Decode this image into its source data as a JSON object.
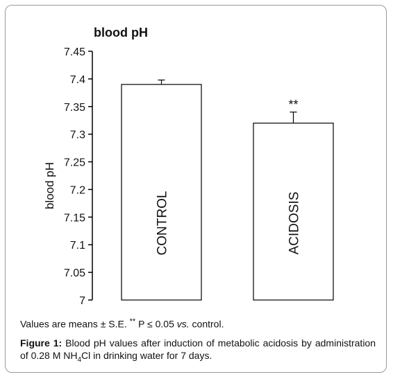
{
  "chart_data": {
    "type": "bar",
    "title": "blood pH",
    "ylabel": "blood pH",
    "xlabel": "",
    "ylim": [
      7.0,
      7.45
    ],
    "yticks": [
      "7.45",
      "7.4",
      "7.35",
      "7.3",
      "7.25",
      "7.2",
      "7.15",
      "7.1",
      "7.05",
      "7"
    ],
    "categories": [
      "CONTROL",
      "ACIDOSIS"
    ],
    "values": [
      7.39,
      7.32
    ],
    "errors": [
      0.008,
      0.02
    ],
    "annotations": [
      "",
      "**"
    ],
    "bar_color": "#ffffff",
    "edge_color": "#000000",
    "grid": false,
    "legend": "none"
  },
  "caption": {
    "note_prefix": "Values are means ± S.E.",
    "note_sig": "**",
    "note_p": " P ≤ 0.05 ",
    "note_vs": "vs.",
    "note_suffix": " control.",
    "figure_label": "Figure 1:",
    "figure_text_a": " Blood pH values after induction of metabolic acidosis by administration of 0.28 M NH",
    "figure_sub": "4",
    "figure_text_b": "Cl in drinking water for 7 days."
  }
}
